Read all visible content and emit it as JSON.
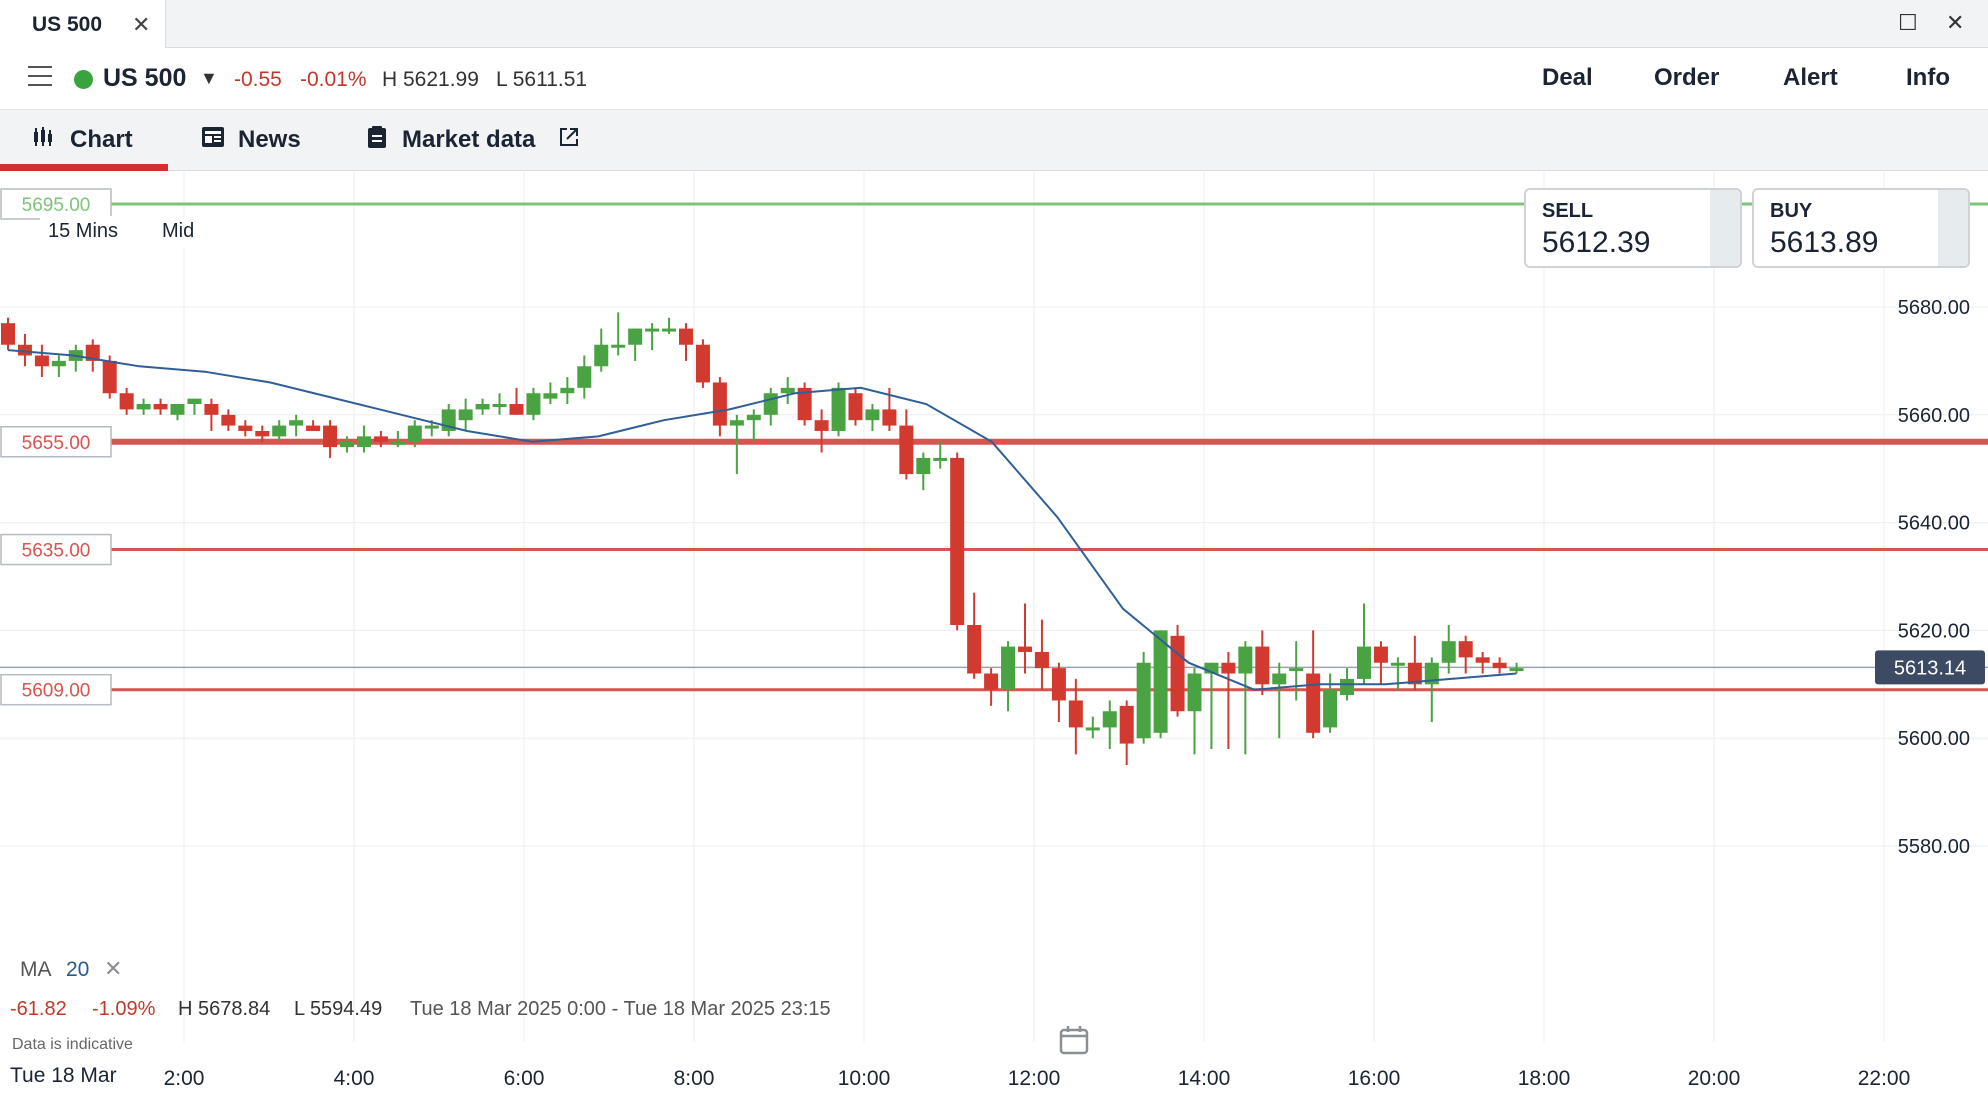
{
  "window": {
    "tab_title": "US 500",
    "close_glyph": "✕",
    "maximize_glyph": "☐",
    "window_close_glyph": "✕"
  },
  "header": {
    "instrument": "US 500",
    "caret_icon": "caret-down",
    "change": "-0.55",
    "change_pct": "-0.01%",
    "high": "H 5621.99",
    "low": "L 5611.51",
    "buttons": {
      "deal": "Deal",
      "order": "Order",
      "alert": "Alert",
      "info": "Info"
    }
  },
  "tabs": {
    "chart": "Chart",
    "news": "News",
    "market_data": "Market data"
  },
  "chart": {
    "timeframe": "15 Mins",
    "price_type": "Mid",
    "sell_label": "SELL",
    "sell_price": "5612.39",
    "buy_label": "BUY",
    "buy_price": "5613.89",
    "current_price": "5613.14",
    "ma_label": "MA",
    "ma_period": "20",
    "ma_close": "✕",
    "range_change": "-61.82",
    "range_change_pct": "-1.09%",
    "range_high": "H 5678.84",
    "range_low": "L 5594.49",
    "range_dates": "Tue 18 Mar 2025 0:00 - Tue 18 Mar 2025 23:15",
    "disclaimer": "Data is indicative",
    "date_label": "Tue 18 Mar",
    "colors": {
      "up": "#4aa343",
      "down": "#d23a2f",
      "ma": "#2f5f95",
      "level": "#d9534f",
      "green_level": "#7cc47a"
    }
  },
  "chart_data": {
    "type": "candlestick",
    "x_label_times": [
      "2:00",
      "4:00",
      "6:00",
      "8:00",
      "10:00",
      "12:00",
      "14:00",
      "16:00",
      "18:00",
      "20:00",
      "22:00"
    ],
    "y_ticks": [
      "5680.00",
      "5660.00",
      "5640.00",
      "5620.00",
      "5600.00",
      "5580.00"
    ],
    "ylim": [
      5575,
      5695
    ],
    "levels": [
      {
        "label": "5695.00",
        "value": 5695,
        "color": "green"
      },
      {
        "label": "5655.00",
        "value": 5655,
        "color": "red"
      },
      {
        "label": "5635.00",
        "value": 5635,
        "color": "red"
      },
      {
        "label": "5609.00",
        "value": 5609,
        "color": "red"
      }
    ],
    "current": 5613.14,
    "candles": [
      [
        5677,
        5678,
        5672,
        5673
      ],
      [
        5673,
        5675,
        5669,
        5671
      ],
      [
        5671,
        5673,
        5667,
        5669
      ],
      [
        5669,
        5671,
        5667,
        5670
      ],
      [
        5670,
        5673,
        5668,
        5672
      ],
      [
        5673,
        5674,
        5668,
        5670
      ],
      [
        5670,
        5671,
        5663,
        5664
      ],
      [
        5664,
        5665,
        5660,
        5661
      ],
      [
        5661,
        5663,
        5660,
        5662
      ],
      [
        5662,
        5663,
        5660,
        5661
      ],
      [
        5660,
        5662,
        5659,
        5662
      ],
      [
        5662,
        5663,
        5660,
        5663
      ],
      [
        5662,
        5663,
        5657,
        5660
      ],
      [
        5660,
        5661,
        5657,
        5658
      ],
      [
        5658,
        5659,
        5656,
        5657
      ],
      [
        5657,
        5658,
        5655,
        5656
      ],
      [
        5656,
        5659,
        5655,
        5658
      ],
      [
        5658,
        5660,
        5656,
        5659
      ],
      [
        5658,
        5659,
        5657,
        5657
      ],
      [
        5658,
        5659,
        5652,
        5654
      ],
      [
        5654,
        5656,
        5653,
        5655
      ],
      [
        5654,
        5658,
        5653,
        5656
      ],
      [
        5656,
        5657,
        5654,
        5655
      ],
      [
        5655,
        5657,
        5654,
        5655
      ],
      [
        5655,
        5659,
        5654,
        5658
      ],
      [
        5658,
        5659,
        5656,
        5658
      ],
      [
        5657,
        5662,
        5656,
        5661
      ],
      [
        5659,
        5663,
        5657,
        5661
      ],
      [
        5661,
        5663,
        5660,
        5662
      ],
      [
        5662,
        5664,
        5660,
        5662
      ],
      [
        5662,
        5665,
        5660,
        5660
      ],
      [
        5660,
        5665,
        5659,
        5664
      ],
      [
        5663,
        5666,
        5662,
        5664
      ],
      [
        5664,
        5667,
        5662,
        5665
      ],
      [
        5665,
        5671,
        5663,
        5669
      ],
      [
        5669,
        5676,
        5668,
        5673
      ],
      [
        5673,
        5679,
        5671,
        5673
      ],
      [
        5673,
        5676,
        5670,
        5676
      ],
      [
        5676,
        5677,
        5672,
        5676
      ],
      [
        5676,
        5678,
        5675,
        5676
      ],
      [
        5676,
        5677,
        5670,
        5673
      ],
      [
        5673,
        5674,
        5665,
        5666
      ],
      [
        5666,
        5667,
        5656,
        5658
      ],
      [
        5658,
        5660,
        5649,
        5659
      ],
      [
        5659,
        5661,
        5655,
        5660
      ],
      [
        5660,
        5665,
        5658,
        5664
      ],
      [
        5664,
        5667,
        5662,
        5665
      ],
      [
        5665,
        5666,
        5658,
        5659
      ],
      [
        5659,
        5661,
        5653,
        5657
      ],
      [
        5657,
        5666,
        5656,
        5665
      ],
      [
        5664,
        5665,
        5658,
        5659
      ],
      [
        5659,
        5662,
        5657,
        5661
      ],
      [
        5661,
        5665,
        5657,
        5658
      ],
      [
        5658,
        5661,
        5648,
        5649
      ],
      [
        5649,
        5653,
        5646,
        5652
      ],
      [
        5652,
        5655,
        5650,
        5652
      ],
      [
        5652,
        5653,
        5620,
        5621
      ],
      [
        5621,
        5627,
        5611,
        5612
      ],
      [
        5612,
        5613,
        5606,
        5609
      ],
      [
        5609,
        5618,
        5605,
        5617
      ],
      [
        5617,
        5625,
        5612,
        5616
      ],
      [
        5616,
        5622,
        5609,
        5613
      ],
      [
        5613,
        5614,
        5603,
        5607
      ],
      [
        5607,
        5611,
        5597,
        5602
      ],
      [
        5602,
        5604,
        5600,
        5602
      ],
      [
        5602,
        5607,
        5598,
        5605
      ],
      [
        5606,
        5607,
        5595,
        5599
      ],
      [
        5600,
        5616,
        5599,
        5614
      ],
      [
        5601,
        5620,
        5600,
        5620
      ],
      [
        5619,
        5621,
        5604,
        5605
      ],
      [
        5605,
        5613,
        5597,
        5612
      ],
      [
        5612,
        5614,
        5598,
        5614
      ],
      [
        5614,
        5616,
        5598,
        5612
      ],
      [
        5612,
        5618,
        5597,
        5617
      ],
      [
        5617,
        5620,
        5608,
        5610
      ],
      [
        5610,
        5614,
        5600,
        5612
      ],
      [
        5613,
        5618,
        5607,
        5613
      ],
      [
        5612,
        5620,
        5600,
        5601
      ],
      [
        5602,
        5612,
        5601,
        5609
      ],
      [
        5608,
        5613,
        5607,
        5611
      ],
      [
        5611,
        5625,
        5610,
        5617
      ],
      [
        5617,
        5618,
        5610,
        5614
      ],
      [
        5614,
        5615,
        5609,
        5614
      ],
      [
        5614,
        5619,
        5609,
        5610
      ],
      [
        5610,
        5615,
        5603,
        5614
      ],
      [
        5614,
        5621,
        5612,
        5618
      ],
      [
        5618,
        5619,
        5612,
        5615
      ],
      [
        5615,
        5616,
        5612,
        5614
      ],
      [
        5614,
        5615,
        5612,
        5613
      ],
      [
        5613,
        5614,
        5612,
        5613
      ]
    ],
    "ma": [
      5672,
      5671,
      5669,
      5668,
      5666,
      5663,
      5660,
      5657,
      5655,
      5656,
      5659,
      5661,
      5664,
      5665,
      5662,
      5655,
      5641,
      5624,
      5614,
      5609,
      5610,
      5610,
      5611,
      5612
    ]
  }
}
